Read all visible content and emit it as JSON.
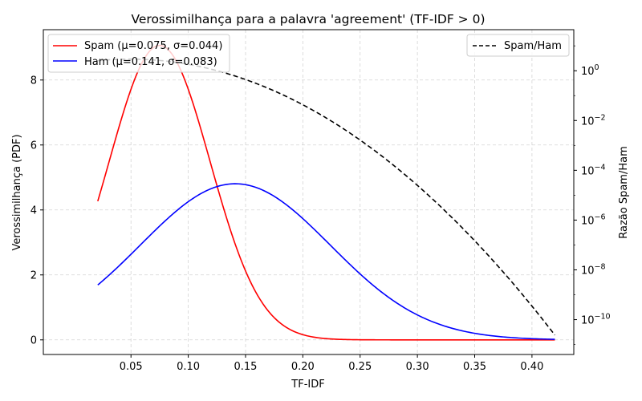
{
  "chart_data": {
    "type": "line",
    "title": "Verossimilhança para a palavra 'agreement' (TF-IDF > 0)",
    "xlabel": "TF-IDF",
    "ylabel": "Verossimilhança (PDF)",
    "ylabel_right": "Razão Spam/Ham",
    "xlim": [
      -0.0265,
      0.4365
    ],
    "ylim": [
      -0.45,
      9.55
    ],
    "ylim_right_log10": [
      -11.4,
      1.65
    ],
    "x_ticks": [
      0.05,
      0.1,
      0.15,
      0.2,
      0.25,
      0.3,
      0.35,
      0.4
    ],
    "x_tick_labels": [
      "0.05",
      "0.10",
      "0.15",
      "0.20",
      "0.25",
      "0.30",
      "0.35",
      "0.40"
    ],
    "y_ticks": [
      0,
      2,
      4,
      6,
      8
    ],
    "y_tick_labels": [
      "0",
      "2",
      "4",
      "6",
      "8"
    ],
    "y_right_ticks_log10": [
      0,
      -2,
      -4,
      -6,
      -8,
      -10
    ],
    "y_right_tick_base": "10",
    "y_right_tick_exponents": [
      "0",
      "−2",
      "−4",
      "−6",
      "−8",
      "−10"
    ],
    "grid": true,
    "x_range": [
      0.021,
      0.42
    ],
    "series": [
      {
        "name": "Spam (μ=0.075, σ=0.044)",
        "axis": "left",
        "distribution": "normal",
        "mu": 0.075,
        "sigma": 0.044,
        "color": "#ff0000",
        "dash": "solid"
      },
      {
        "name": "Ham (μ=0.141, σ=0.083)",
        "axis": "left",
        "distribution": "normal",
        "mu": 0.141,
        "sigma": 0.083,
        "color": "#0000ff",
        "dash": "solid"
      },
      {
        "name": "Spam/Ham",
        "axis": "right",
        "scale": "log",
        "ratio_of": [
          "Spam (μ=0.075, σ=0.044)",
          "Ham (μ=0.141, σ=0.083)"
        ],
        "color": "#000000",
        "dash": "dashed"
      }
    ],
    "legend_left": {
      "position": "upper-left",
      "entries": [
        "Spam (μ=0.075, σ=0.044)",
        "Ham (μ=0.141, σ=0.083)"
      ]
    },
    "legend_right": {
      "position": "upper-right",
      "entries": [
        "Spam/Ham"
      ]
    }
  }
}
